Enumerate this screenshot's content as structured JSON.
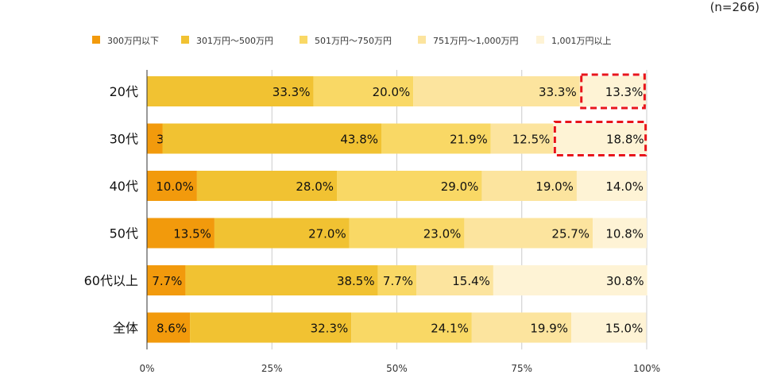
{
  "note": "(n=266)",
  "chart_data": {
    "type": "bar",
    "orientation": "horizontal",
    "stacked": true,
    "categories": [
      "20代",
      "30代",
      "40代",
      "50代",
      "60代以上",
      "全体"
    ],
    "series": [
      {
        "name": "300万円以下",
        "color": "#F29A0C",
        "values": [
          0.0,
          3.1,
          10.0,
          13.5,
          7.7,
          8.6
        ]
      },
      {
        "name": "301万円～500万円",
        "color": "#F1C232",
        "values": [
          33.3,
          43.8,
          28.0,
          27.0,
          38.5,
          32.3
        ]
      },
      {
        "name": "501万円～750万円",
        "color": "#F9D865",
        "values": [
          20.0,
          21.9,
          29.0,
          23.0,
          7.7,
          24.1
        ]
      },
      {
        "name": "751万円～1,000万円",
        "color": "#FCE49E",
        "values": [
          33.3,
          12.5,
          19.0,
          25.7,
          15.4,
          19.9
        ]
      },
      {
        "name": "1,001万円以上",
        "color": "#FEF3D5",
        "values": [
          13.3,
          18.8,
          14.0,
          10.8,
          30.8,
          15.0
        ]
      }
    ],
    "xlim": [
      0,
      100
    ],
    "xticks": [
      "0%",
      "25%",
      "50%",
      "75%",
      "100%"
    ],
    "legend_position": "top",
    "grid": true,
    "highlights": [
      {
        "category": "20代",
        "series": "1,001万円以上"
      },
      {
        "category": "30代",
        "series": "1,001万円以上"
      }
    ],
    "highlight_color": "#E8151B"
  }
}
